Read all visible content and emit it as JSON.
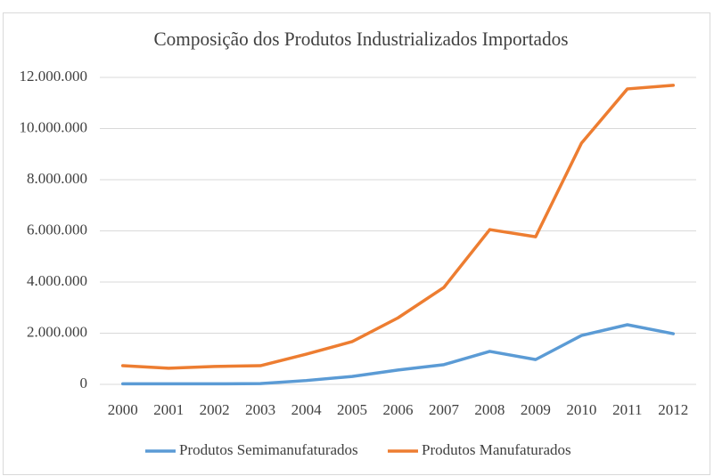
{
  "chart_data": {
    "type": "line",
    "title": "Composição dos Produtos Industrializados Importados",
    "categories": [
      "2000",
      "2001",
      "2002",
      "2003",
      "2004",
      "2005",
      "2006",
      "2007",
      "2008",
      "2009",
      "2010",
      "2011",
      "2012"
    ],
    "series": [
      {
        "name": "Produtos Semimanufaturados",
        "color": "#5b9bd5",
        "values": [
          20000,
          20000,
          20000,
          30000,
          150000,
          310000,
          560000,
          770000,
          1290000,
          970000,
          1910000,
          2330000,
          1980000
        ]
      },
      {
        "name": "Produtos Manufaturados",
        "color": "#ed7d31",
        "values": [
          730000,
          630000,
          700000,
          730000,
          1180000,
          1670000,
          2600000,
          3790000,
          6050000,
          5770000,
          9430000,
          11550000,
          11690000
        ]
      }
    ],
    "ylim": [
      0,
      12000000
    ],
    "yticks": [
      0,
      {
        "value": 2000000,
        "label": "2.000.000"
      },
      {
        "value": 4000000,
        "label": "4.000.000"
      },
      {
        "value": 6000000,
        "label": "6.000.000"
      },
      {
        "value": 8000000,
        "label": "8.000.000"
      },
      {
        "value": 10000000,
        "label": "10.000.000"
      },
      {
        "value": 12000000,
        "label": "12.000.000"
      }
    ],
    "grid": true,
    "legend": "bottom"
  }
}
